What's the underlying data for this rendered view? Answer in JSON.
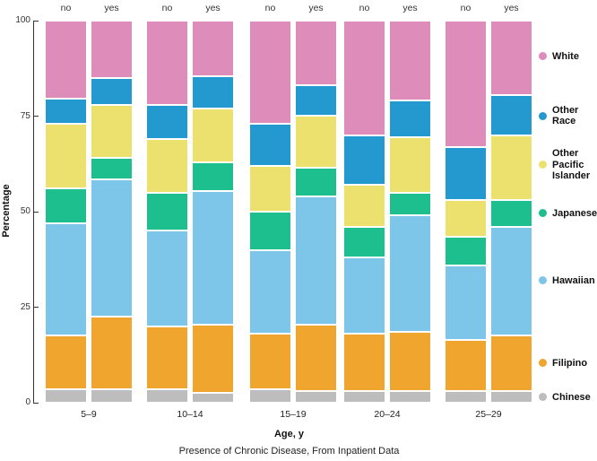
{
  "figure": {
    "y_axis_title": "Percentage",
    "x_axis_title": "Age, y",
    "caption": "Presence of Chronic Disease, From Inpatient Data"
  },
  "chart_data": {
    "type": "bar",
    "subtype": "stacked-grouped-percentage",
    "title": "",
    "xlabel": "Age, y",
    "ylabel": "Percentage",
    "caption": "Presence of Chronic Disease, From Inpatient Data",
    "ylim": [
      0,
      100
    ],
    "yticks": [
      0,
      25,
      50,
      75,
      100
    ],
    "grid": false,
    "legend_position": "right",
    "categories": [
      "5–9",
      "10–14",
      "15–19",
      "20–24",
      "25–29"
    ],
    "bar_labels": [
      "no",
      "yes"
    ],
    "bar_label_meaning": "Presence of Chronic Disease",
    "stack_order_bottom_to_top": [
      "Chinese",
      "Filipino",
      "Hawaiian",
      "Japanese",
      "Other Pacific Islander",
      "Other Race",
      "White"
    ],
    "series": [
      {
        "name": "Chinese",
        "color": "#bdbdbd",
        "no": [
          3.5,
          3.5,
          3.5,
          3,
          3
        ],
        "yes": [
          3.5,
          2.5,
          3,
          3,
          3
        ]
      },
      {
        "name": "Filipino",
        "color": "#f0a52e",
        "no": [
          14,
          16.5,
          14.5,
          15,
          13.5
        ],
        "yes": [
          19,
          18,
          17.5,
          15.5,
          14.5
        ]
      },
      {
        "name": "Hawaiian",
        "color": "#7dc6ea",
        "no": [
          29.5,
          25,
          22,
          20,
          19.5
        ],
        "yes": [
          36,
          35,
          33.5,
          30.5,
          28.5
        ]
      },
      {
        "name": "Japanese",
        "color": "#1dbf8e",
        "no": [
          9,
          10,
          10,
          8,
          7.5
        ],
        "yes": [
          5.5,
          7.5,
          7.5,
          6,
          7
        ]
      },
      {
        "name": "Other Pacific Islander",
        "color": "#ece16e",
        "no": [
          17,
          14,
          12,
          11,
          9.5
        ],
        "yes": [
          14,
          14,
          13.5,
          14.5,
          17
        ]
      },
      {
        "name": "Other Race",
        "color": "#2399cf",
        "no": [
          6.5,
          9,
          11,
          13,
          14
        ],
        "yes": [
          7,
          8.5,
          8,
          9.5,
          10.5
        ]
      },
      {
        "name": "White",
        "color": "#de8cb9",
        "no": [
          20.5,
          22,
          27,
          30,
          33
        ],
        "yes": [
          15,
          14.5,
          17,
          21,
          19.5
        ]
      }
    ]
  },
  "legend": {
    "entries": [
      {
        "label": "White",
        "lines": "White",
        "color": "#de8cb9"
      },
      {
        "label": "Other Race",
        "lines": "Other\nRace",
        "color": "#2399cf"
      },
      {
        "label": "Other Pacific Islander",
        "lines": "Other\nPacific\nIslander",
        "color": "#ece16e"
      },
      {
        "label": "Japanese",
        "lines": "Japanese",
        "color": "#1dbf8e"
      },
      {
        "label": "Hawaiian",
        "lines": "Hawaiian",
        "color": "#7dc6ea"
      },
      {
        "label": "Filipino",
        "lines": "Filipino",
        "color": "#f0a52e"
      },
      {
        "label": "Chinese",
        "lines": "Chinese",
        "color": "#bdbdbd"
      }
    ]
  }
}
